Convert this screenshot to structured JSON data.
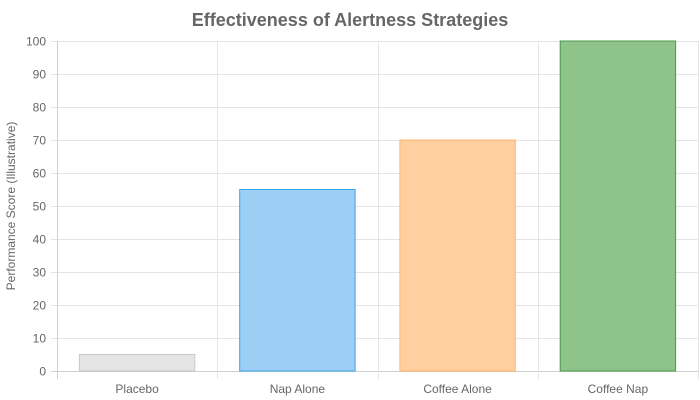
{
  "chart_data": {
    "type": "bar",
    "title": "Effectiveness of Alertness Strategies",
    "xlabel": "",
    "ylabel": "Performance Score (Illustrative)",
    "categories": [
      "Placebo",
      "Nap Alone",
      "Coffee Alone",
      "Coffee Nap"
    ],
    "values": [
      5,
      55,
      70,
      100
    ],
    "ylim": [
      0,
      100
    ],
    "yticks": [
      0,
      10,
      20,
      30,
      40,
      50,
      60,
      70,
      80,
      90,
      100
    ],
    "grid": true,
    "legend": "none",
    "bar_fill_colors": [
      "#e4e4e4",
      "#9dcff5",
      "#ffcf9f",
      "#8ec489"
    ],
    "bar_stroke_colors": [
      "#c9c9c9",
      "#36a2eb",
      "#ffb36b",
      "#4c9a4c"
    ]
  }
}
